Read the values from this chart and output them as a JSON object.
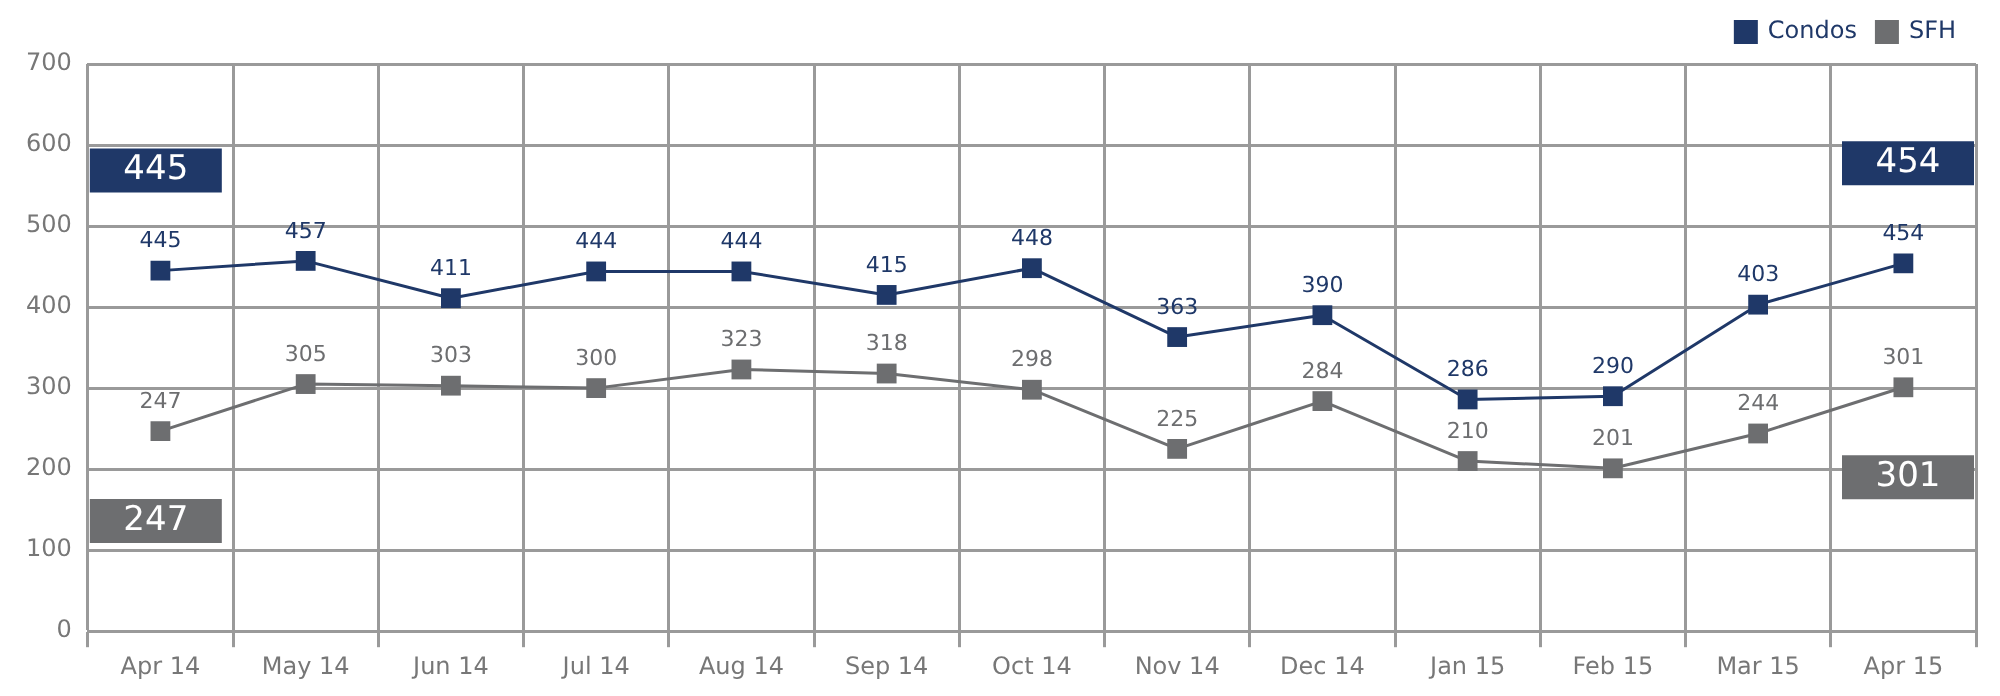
{
  "chart_data": {
    "type": "line",
    "categories": [
      "Apr 14",
      "May 14",
      "Jun 14",
      "Jul 14",
      "Aug 14",
      "Sep 14",
      "Oct 14",
      "Nov 14",
      "Dec 14",
      "Jan 15",
      "Feb 15",
      "Mar 15",
      "Apr 15"
    ],
    "series": [
      {
        "name": "Condos",
        "color": "#1f3868",
        "values": [
          445,
          457,
          411,
          444,
          444,
          415,
          448,
          363,
          390,
          286,
          290,
          403,
          454
        ]
      },
      {
        "name": "SFH",
        "color": "#6d6e70",
        "values": [
          247,
          305,
          303,
          300,
          323,
          318,
          298,
          225,
          284,
          210,
          201,
          244,
          301
        ]
      }
    ],
    "ylim": [
      0,
      700
    ],
    "yticks": [
      0,
      100,
      200,
      300,
      400,
      500,
      600,
      700
    ],
    "grid": true,
    "legend": "top right",
    "marker": "square",
    "line_style": "solid",
    "data_labels": true,
    "annotations": [
      "445",
      "247",
      "454",
      "301"
    ]
  }
}
